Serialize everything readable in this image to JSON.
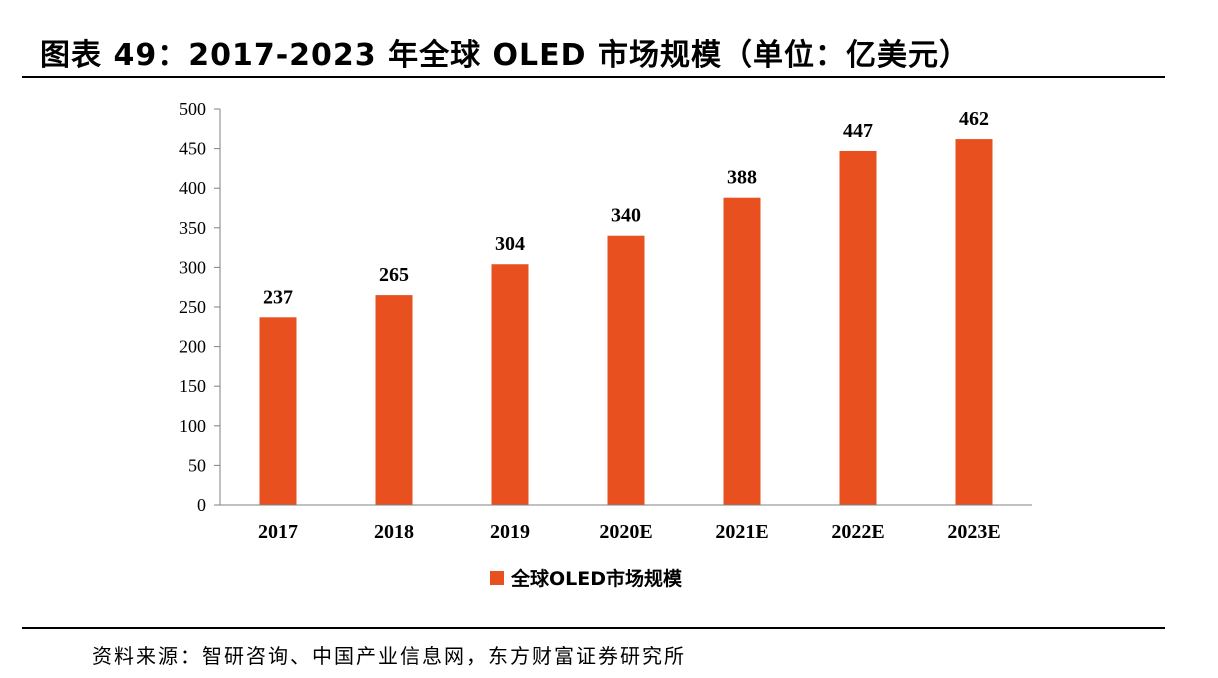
{
  "page": {
    "title": "图表 49：2017-2023 年全球 OLED 市场规模（单位：亿美元）",
    "source": "资料来源：智研咨询、中国产业信息网，东方财富证券研究所"
  },
  "chart_data": {
    "type": "bar",
    "categories": [
      "2017",
      "2018",
      "2019",
      "2020E",
      "2021E",
      "2022E",
      "2023E"
    ],
    "series": [
      {
        "name": "全球OLED市场规模",
        "values": [
          237,
          265,
          304,
          340,
          388,
          447,
          462
        ],
        "color": "#E8501F"
      }
    ],
    "ylim": [
      0,
      500
    ],
    "yticks": [
      0,
      50,
      100,
      150,
      200,
      250,
      300,
      350,
      400,
      450,
      500
    ],
    "data_labels": true,
    "grid": false,
    "legend_position": "bottom"
  }
}
